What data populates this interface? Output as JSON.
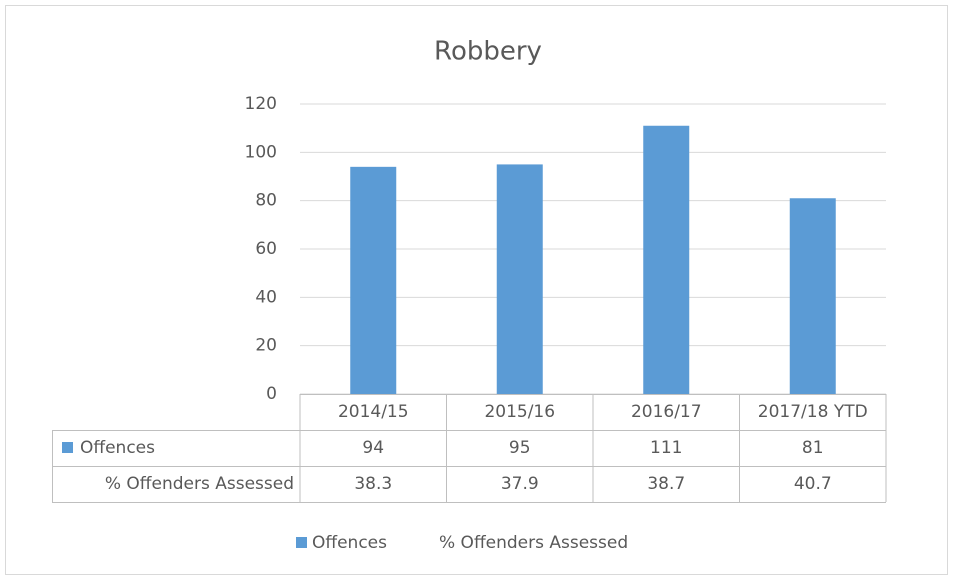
{
  "chart_data": {
    "type": "bar",
    "title": "Robbery",
    "categories": [
      "2014/15",
      "2015/16",
      "2016/17",
      "2017/18 YTD"
    ],
    "series": [
      {
        "name": "Offences",
        "color": "#5b9bd5",
        "values": [
          94,
          95,
          111,
          81
        ]
      },
      {
        "name": "% Offenders Assessed",
        "values": [
          38.3,
          37.9,
          38.7,
          40.7
        ]
      }
    ],
    "ylim": [
      0,
      120
    ],
    "yticks": [
      0,
      20,
      40,
      60,
      80,
      100,
      120
    ],
    "grid": true,
    "legend": "bottom"
  }
}
